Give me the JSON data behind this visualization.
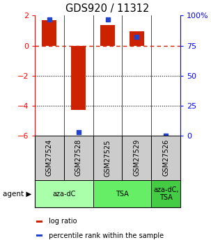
{
  "title": "GDS920 / 11312",
  "samples": [
    "GSM27524",
    "GSM27528",
    "GSM27525",
    "GSM27529",
    "GSM27526"
  ],
  "log_ratios": [
    1.7,
    -4.3,
    1.35,
    0.95,
    0.0
  ],
  "percentile_ranks": [
    97,
    3,
    97,
    82,
    0
  ],
  "bar_color": "#cc2200",
  "dot_color": "#2244cc",
  "ylim": [
    -6,
    2
  ],
  "y_left_ticks": [
    2,
    0,
    -2,
    -4,
    -6
  ],
  "y_right_ticks": [
    100,
    75,
    50,
    25,
    0
  ],
  "y_right_labels": [
    "100%",
    "75",
    "50",
    "25",
    "0"
  ],
  "agent_groups": [
    {
      "label": "aza-dC",
      "span": [
        0,
        2
      ],
      "color": "#aaffaa"
    },
    {
      "label": "TSA",
      "span": [
        2,
        4
      ],
      "color": "#66ee66"
    },
    {
      "label": "aza-dC,\nTSA",
      "span": [
        4,
        5
      ],
      "color": "#44cc44"
    }
  ],
  "sample_box_color": "#cccccc",
  "legend_items": [
    {
      "color": "#cc2200",
      "label": " log ratio"
    },
    {
      "color": "#2244cc",
      "label": " percentile rank within the sample"
    }
  ],
  "agent_label": "agent",
  "zero_line_color": "#cc2200",
  "grid_color": "#333333",
  "bar_width": 0.5
}
